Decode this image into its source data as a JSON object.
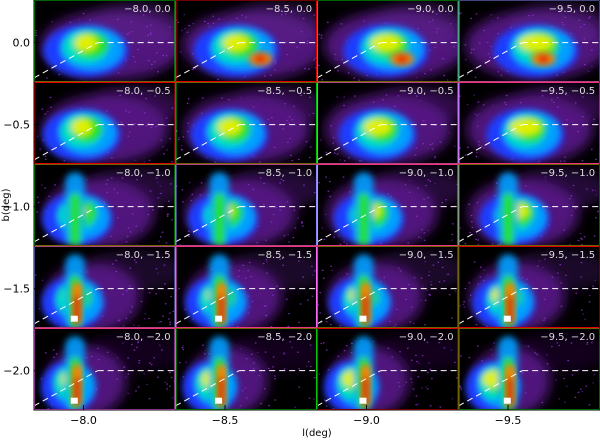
{
  "chart_data": {
    "type": "heatmap",
    "xlabel": "l(deg)",
    "ylabel": "b(deg)",
    "x_ticks": [
      "-8.0",
      "-8.5",
      "-9.0",
      "-9.5"
    ],
    "y_ticks": [
      "0.0",
      "-0.5",
      "-1.0",
      "-1.5",
      "-2.0"
    ],
    "grid_columns_l": [
      -8.0,
      -8.5,
      -9.0,
      -9.5
    ],
    "grid_rows_b": [
      0.0,
      -0.5,
      -1.0,
      -1.5,
      -2.0
    ],
    "panel_label_values": [
      [
        "-8.0, 0.0",
        "-8.5, 0.0",
        "-9.0, 0.0",
        "-9.5, 0.0"
      ],
      [
        "-8.0, -0.5",
        "-8.5, -0.5",
        "-9.0, -0.5",
        "-9.5, -0.5"
      ],
      [
        "-8.0, -1.0",
        "-8.5, -1.0",
        "-9.0, -1.0",
        "-9.5, -1.0"
      ],
      [
        "-8.0, -1.5",
        "-8.5, -1.5",
        "-9.0, -1.5",
        "-9.5, -1.5"
      ],
      [
        "-8.0, -2.0",
        "-8.5, -2.0",
        "-9.0, -2.0",
        "-9.5, -2.0"
      ]
    ],
    "panel_labels": [
      [
        "−8.0, 0.0",
        "−8.5, 0.0",
        "−9.0, 0.0",
        "−9.5, 0.0"
      ],
      [
        "−8.0, −0.5",
        "−8.5, −0.5",
        "−9.0, −0.5",
        "−9.5, −0.5"
      ],
      [
        "−8.0, −1.0",
        "−8.5, −1.0",
        "−9.0, −1.0",
        "−9.5, −1.0"
      ],
      [
        "−8.0, −1.5",
        "−8.5, −1.5",
        "−9.0, −1.5",
        "−9.5, −1.5"
      ],
      [
        "−8.0, −2.0",
        "−8.5, −2.0",
        "−9.0, −2.0",
        "−9.5, −2.0"
      ]
    ],
    "colormap": [
      "#000000",
      "#5a1a8a",
      "#8a33c8",
      "#1e3cff",
      "#00a0ff",
      "#00e0c0",
      "#20e020",
      "#e0f000",
      "#ff8000",
      "#e00000",
      "#ffffff"
    ],
    "panel_border_colors": [
      "#00c800",
      "#e00000",
      "#00c800",
      "#8888ff",
      "#ff66ff"
    ],
    "reference_line_color": "#ffffff",
    "grid": false
  }
}
